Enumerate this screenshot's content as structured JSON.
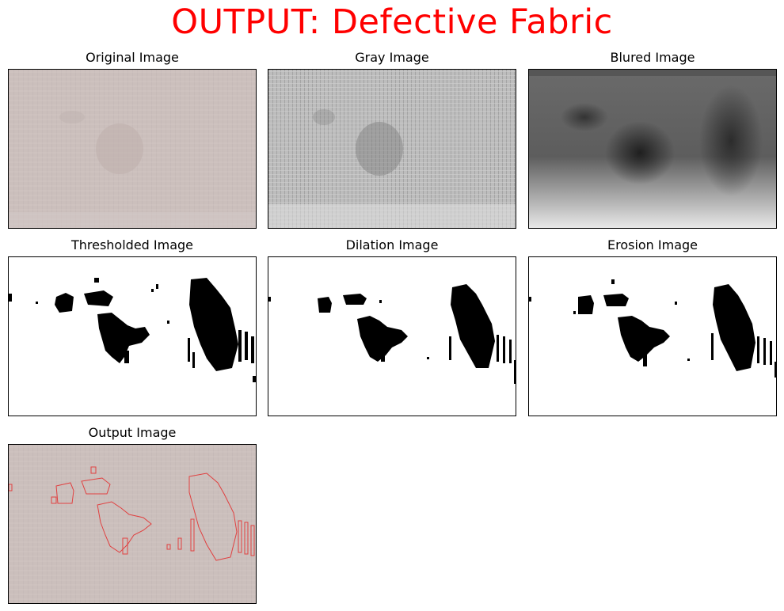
{
  "title": "OUTPUT: Defective Fabric",
  "colors": {
    "title": "#ff0000",
    "fabric": "#cbbfbd",
    "contour": "#e04040",
    "defect": "#000000"
  },
  "panels": [
    {
      "id": "original",
      "title": "Original Image"
    },
    {
      "id": "gray",
      "title": "Gray Image"
    },
    {
      "id": "blurred",
      "title": "Blured Image"
    },
    {
      "id": "thresholded",
      "title": "Thresholded Image"
    },
    {
      "id": "dilation",
      "title": "Dilation Image"
    },
    {
      "id": "erosion",
      "title": "Erosion Image"
    },
    {
      "id": "output",
      "title": "Output Image"
    }
  ]
}
